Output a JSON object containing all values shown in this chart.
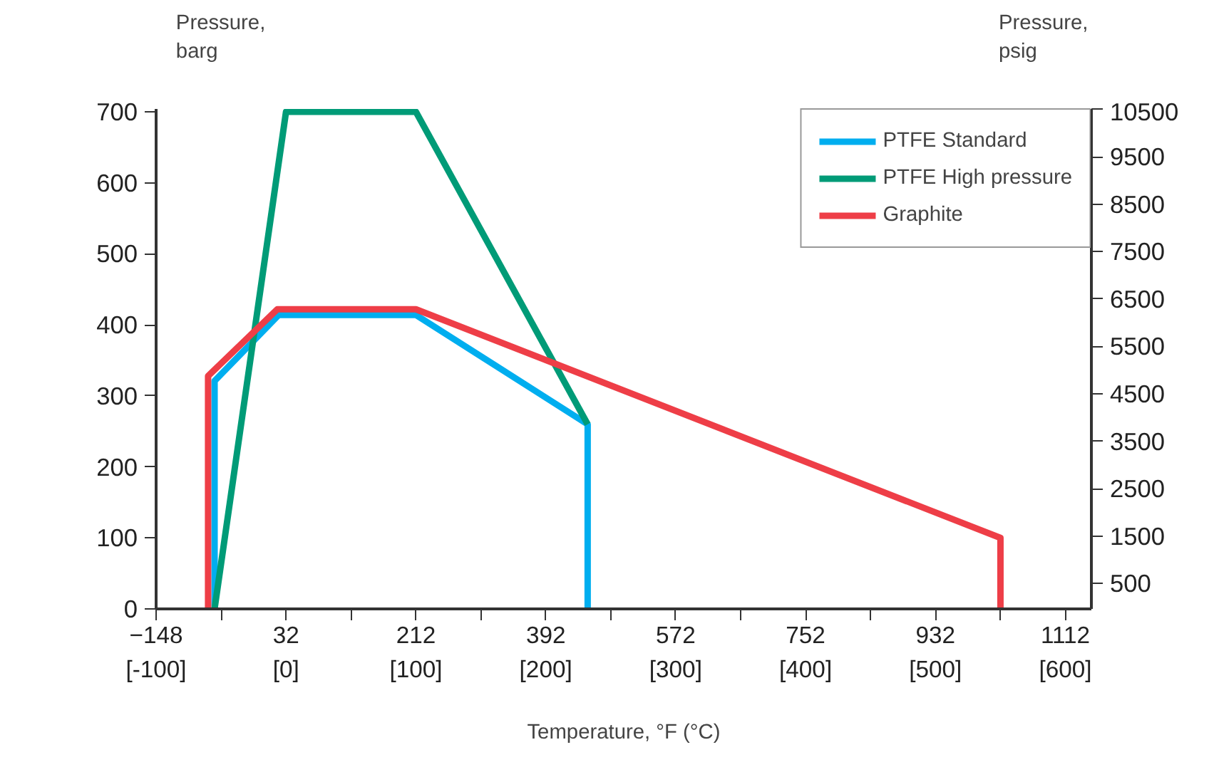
{
  "chart_data": {
    "type": "line",
    "xlabel": "Temperature, °F (°C)",
    "ylabel": "Pressure, barg",
    "y2label": "Pressure, psig",
    "xlim": [
      -148,
      1148
    ],
    "xticks": [
      -148,
      {
        "value": -58,
        "label": null
      },
      32,
      {
        "value": 122,
        "label": null
      },
      212,
      {
        "value": 302,
        "label": null
      },
      392,
      {
        "value": 482,
        "label": null
      },
      572,
      {
        "value": 662,
        "label": null
      },
      752,
      {
        "value": 842,
        "label": null
      },
      932,
      {
        "value": 1022,
        "label": null
      },
      1112
    ],
    "x2lim": [
      -100,
      620
    ],
    "x2ticks": [
      {
        "value": -100,
        "label": "[-100]"
      },
      {
        "value": 0,
        "label": "[0]"
      },
      {
        "value": 100,
        "label": "[100]"
      },
      {
        "value": 200,
        "label": "[200]"
      },
      {
        "value": 300,
        "label": "[300]"
      },
      {
        "value": 400,
        "label": "[400]"
      },
      {
        "value": 500,
        "label": "[500]"
      },
      {
        "value": 600,
        "label": "[600]"
      }
    ],
    "ylim": [
      0,
      704
    ],
    "yticks": [
      0,
      100,
      200,
      300,
      400,
      500,
      600,
      700
    ],
    "y2lim": [
      -37,
      10510
    ],
    "y2ticks": [
      500,
      1500,
      2500,
      3500,
      4500,
      5500,
      6500,
      7500,
      8500,
      9500,
      10500
    ],
    "grid": false,
    "legend": "top right",
    "marker": "none",
    "line_style": "solid",
    "series": [
      {
        "name": "PTFE Standard",
        "color": "#00aeef",
        "x": [
          -67,
          -67,
          22,
          212,
          450,
          450
        ],
        "values": [
          0,
          321,
          414,
          414,
          260,
          0
        ]
      },
      {
        "name": "PTFE High pressure",
        "color": "#009b77",
        "x": [
          -67,
          32,
          212,
          450
        ],
        "values": [
          0,
          700,
          700,
          260
        ]
      },
      {
        "name": "Graphite",
        "color": "#ee3e47",
        "x": [
          -76,
          -76,
          20,
          212,
          1022,
          1022
        ],
        "values": [
          0,
          328,
          422,
          422,
          100,
          0
        ]
      }
    ]
  }
}
